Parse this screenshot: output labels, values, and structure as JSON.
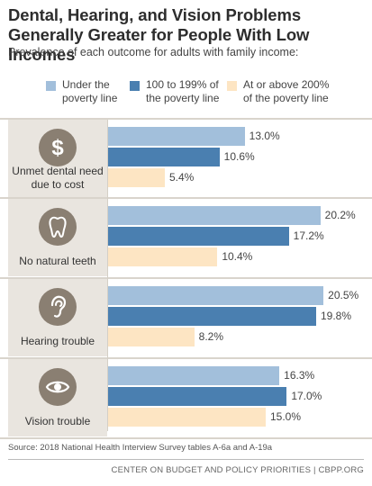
{
  "title": "Dental, Hearing, and Vision Problems Generally Greater for People With Low Incomes",
  "subtitle": "Prevalence of each outcome for adults with family income:",
  "source": "Source: 2018 National Health Interview Survey tables A-6a and A-19a",
  "footer": "CENTER ON BUDGET AND POLICY PRIORITIES | CBPP.ORG",
  "colors": {
    "under_poverty": "#a2bfdb",
    "poverty_100_199": "#4a7fb0",
    "above_200": "#fde5c3",
    "panel_bg": "#e9e5df",
    "icon_bg": "#8a7f72"
  },
  "chart_data": {
    "type": "bar",
    "orientation": "horizontal",
    "categories": [
      "Unmet dental need due to cost",
      "No natural teeth",
      "Hearing trouble",
      "Vision trouble"
    ],
    "category_icons": [
      "dollar-icon",
      "tooth-icon",
      "ear-icon",
      "eye-icon"
    ],
    "series": [
      {
        "name": "Under the poverty line",
        "values": [
          13.0,
          20.2,
          20.5,
          16.3
        ],
        "color": "#a2bfdb"
      },
      {
        "name": "100 to 199% of the poverty line",
        "values": [
          10.6,
          17.2,
          19.8,
          17.0
        ],
        "color": "#4a7fb0"
      },
      {
        "name": "At or above 200% of the poverty line",
        "values": [
          5.4,
          10.4,
          8.2,
          15.0
        ],
        "color": "#fde5c3"
      }
    ],
    "value_labels": [
      [
        "13.0%",
        "10.6%",
        "5.4%"
      ],
      [
        "20.2%",
        "17.2%",
        "10.4%"
      ],
      [
        "20.5%",
        "19.8%",
        "8.2%"
      ],
      [
        "16.3%",
        "17.0%",
        "15.0%"
      ]
    ],
    "legend_labels": [
      "Under the\npoverty line",
      "100 to 199% of\nthe poverty line",
      "At or above 200%\nof the poverty line"
    ],
    "category_labels": [
      "Unmet dental need\ndue to cost",
      "No natural teeth",
      "Hearing trouble",
      "Vision trouble"
    ],
    "x_range": [
      0,
      21
    ],
    "grid": false,
    "legend_position": "top"
  }
}
